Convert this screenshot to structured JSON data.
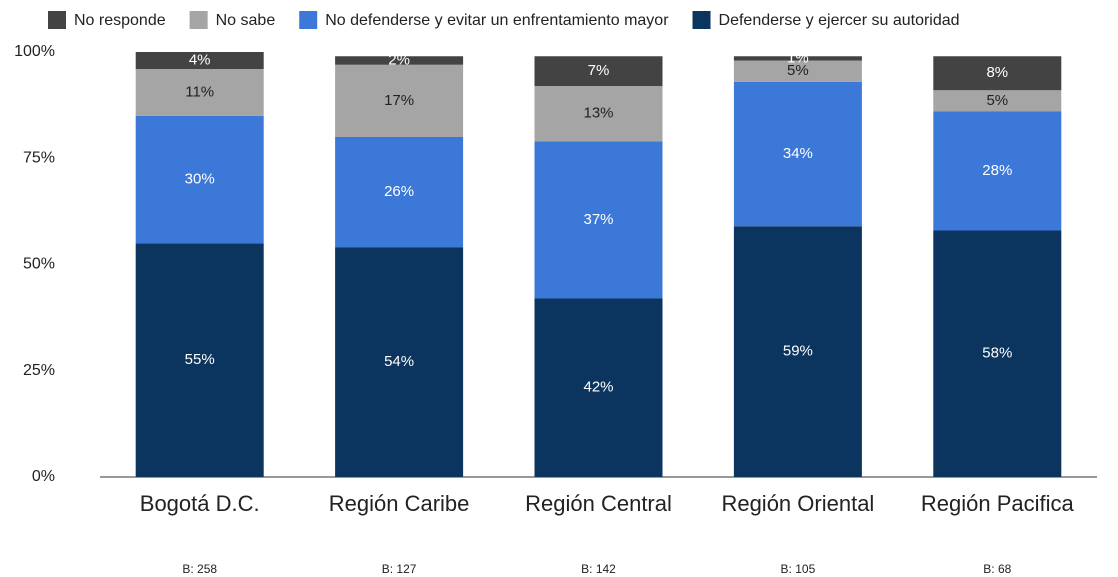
{
  "chart_data": {
    "type": "stacked_bar",
    "categories": [
      "Bogotá D.C.",
      "Región Caribe",
      "Región Central",
      "Región Oriental",
      "Región Pacifica"
    ],
    "annotations": [
      "B: 258",
      "B: 127",
      "B: 142",
      "B: 105",
      "B: 68"
    ],
    "series": [
      {
        "name": "No responde",
        "color": "#434343",
        "values": [
          4,
          2,
          7,
          1,
          8
        ],
        "value_labels": [
          "4%",
          "2%",
          "7%",
          "1%",
          "8%"
        ]
      },
      {
        "name": "No sabe",
        "color": "#a5a5a5",
        "values": [
          11,
          17,
          13,
          5,
          5
        ],
        "value_labels": [
          "11%",
          "17%",
          "13%",
          "5%",
          "5%"
        ]
      },
      {
        "name": "No defenderse y evitar un enfrentamiento mayor",
        "color": "#3c78d8",
        "values": [
          30,
          26,
          37,
          34,
          28
        ],
        "value_labels": [
          "30%",
          "26%",
          "37%",
          "34%",
          "28%"
        ]
      },
      {
        "name": "Defenderse y ejercer su autoridad",
        "color": "#0b345e",
        "values": [
          55,
          54,
          42,
          59,
          58
        ],
        "value_labels": [
          "55%",
          "54%",
          "42%",
          "59%",
          "58%"
        ]
      }
    ],
    "ylim": [
      0,
      100
    ],
    "yticks": [
      {
        "value": 0,
        "label": "0%"
      },
      {
        "value": 25,
        "label": "25%"
      },
      {
        "value": 50,
        "label": "50%"
      },
      {
        "value": 75,
        "label": "75%"
      },
      {
        "value": 100,
        "label": "100%"
      }
    ],
    "legend": "top"
  }
}
